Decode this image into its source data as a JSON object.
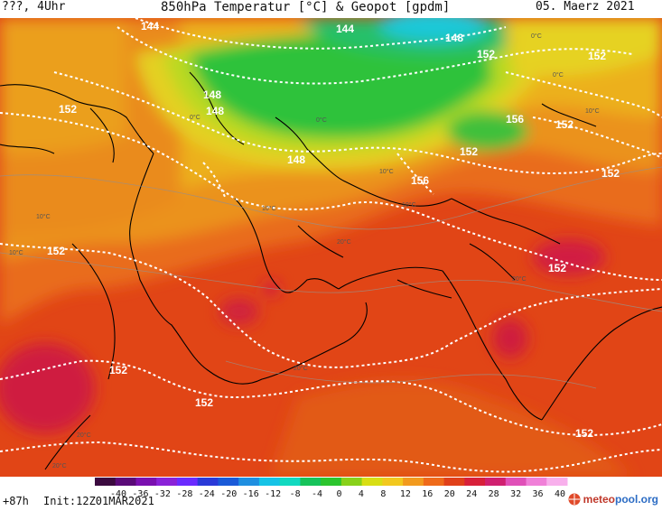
{
  "header": {
    "left_label": "???, 4Uhr",
    "title": "850hPa Temperatur [°C] & Geopot [gpdm]",
    "date": "05. Maerz 2021"
  },
  "map": {
    "geopot_labels": [
      {
        "text": "144"
      },
      {
        "text": "144"
      },
      {
        "text": "148"
      },
      {
        "text": "152"
      },
      {
        "text": "148"
      },
      {
        "text": "148"
      },
      {
        "text": "148"
      },
      {
        "text": "152"
      },
      {
        "text": "156"
      },
      {
        "text": "152"
      },
      {
        "text": "156"
      },
      {
        "text": "152"
      },
      {
        "text": "152"
      },
      {
        "text": "152"
      },
      {
        "text": "152"
      },
      {
        "text": "152"
      },
      {
        "text": "152"
      },
      {
        "text": "152"
      },
      {
        "text": "152"
      }
    ],
    "temp_labels": [
      {
        "text": "0°C"
      },
      {
        "text": "0°C"
      },
      {
        "text": "10°C"
      },
      {
        "text": "10°C"
      },
      {
        "text": "10°C"
      },
      {
        "text": "20°C"
      },
      {
        "text": "20°C"
      },
      {
        "text": "20°C"
      },
      {
        "text": "20°C"
      },
      {
        "text": "20°C"
      },
      {
        "text": "10°C"
      },
      {
        "text": "10°C"
      },
      {
        "text": "0°C"
      },
      {
        "text": "0°C"
      },
      {
        "text": "10°C"
      }
    ]
  },
  "colorbar": {
    "ticks": [
      "-40",
      "-36",
      "-32",
      "-28",
      "-24",
      "-20",
      "-16",
      "-12",
      "-8",
      "-4",
      "0",
      "4",
      "8",
      "12",
      "16",
      "20",
      "24",
      "28",
      "32",
      "36",
      "40"
    ],
    "colors": [
      "#3b0a3f",
      "#5a0a78",
      "#7a10b0",
      "#8a22d8",
      "#6a2bff",
      "#2a3ad8",
      "#1a5ad8",
      "#1f8fe0",
      "#16c3e6",
      "#12d9c0",
      "#16c35a",
      "#2cc52e",
      "#88d11a",
      "#d8de14",
      "#f2c81e",
      "#f29a1e",
      "#ef6a1a",
      "#e0401a",
      "#d8203a",
      "#d02070",
      "#e050b8",
      "#f080d8",
      "#f8b0ec"
    ]
  },
  "footer": {
    "forecast": "+87h",
    "init": "Init:12Z01MAR2021",
    "brand": "meteopool.org"
  },
  "colors": {
    "green": "#27c437",
    "yellow_green": "#c2dd22",
    "yellow": "#e9d21f",
    "orange": "#eb9a1e",
    "orange_red": "#e66a18",
    "red": "#de3f16",
    "crimson": "#d11c42",
    "cyan": "#18c6e2"
  }
}
